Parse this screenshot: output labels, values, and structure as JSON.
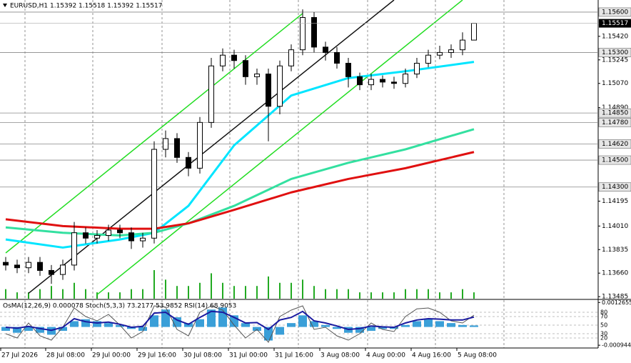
{
  "chart_data": {
    "type": "candlestick",
    "title": "EURUSD,H1  1.15392 1.15518 1.15392 1.15517",
    "candles": {
      "open": [
        1.1374,
        1.1372,
        1.137,
        1.1374,
        1.1368,
        1.1365,
        1.1372,
        1.1396,
        1.1392,
        1.1394,
        1.1398,
        1.1396,
        1.139,
        1.1392,
        1.1458,
        1.1466,
        1.1452,
        1.1444,
        1.1478,
        1.152,
        1.1528,
        1.1524,
        1.1512,
        1.1514,
        1.149,
        1.152,
        1.1532,
        1.1556,
        1.1534,
        1.153,
        1.1522,
        1.1512,
        1.1506,
        1.151,
        1.1508,
        1.1507,
        1.1514,
        1.1522,
        1.1528,
        1.153,
        1.1532,
        1.15392
      ],
      "high": [
        1.1378,
        1.1376,
        1.1378,
        1.1378,
        1.1372,
        1.1376,
        1.1404,
        1.14,
        1.1398,
        1.1402,
        1.1402,
        1.14,
        1.1396,
        1.1464,
        1.1472,
        1.147,
        1.1456,
        1.1482,
        1.1526,
        1.1533,
        1.1532,
        1.1528,
        1.1518,
        1.1518,
        1.1524,
        1.1536,
        1.1562,
        1.156,
        1.1538,
        1.1534,
        1.1526,
        1.1515,
        1.1514,
        1.1513,
        1.1512,
        1.1518,
        1.1526,
        1.1532,
        1.1535,
        1.1536,
        1.1545,
        1.15518
      ],
      "low": [
        1.1368,
        1.1366,
        1.1366,
        1.1364,
        1.1358,
        1.1361,
        1.1368,
        1.1388,
        1.1388,
        1.139,
        1.1392,
        1.1384,
        1.1385,
        1.1388,
        1.1452,
        1.1448,
        1.1438,
        1.144,
        1.1474,
        1.1516,
        1.1518,
        1.1506,
        1.1506,
        1.1464,
        1.1484,
        1.1516,
        1.1528,
        1.153,
        1.1524,
        1.1518,
        1.1504,
        1.1502,
        1.1502,
        1.1504,
        1.1503,
        1.1504,
        1.1511,
        1.1519,
        1.1525,
        1.1526,
        1.1528,
        1.15392
      ],
      "close": [
        1.1372,
        1.137,
        1.1374,
        1.1368,
        1.1365,
        1.1372,
        1.1396,
        1.1392,
        1.1394,
        1.1398,
        1.1396,
        1.139,
        1.1392,
        1.1458,
        1.1466,
        1.1452,
        1.1444,
        1.1478,
        1.152,
        1.1528,
        1.1524,
        1.1512,
        1.1514,
        1.149,
        1.152,
        1.1532,
        1.1556,
        1.1534,
        1.153,
        1.1522,
        1.1512,
        1.1506,
        1.151,
        1.1508,
        1.1507,
        1.1514,
        1.1522,
        1.1528,
        1.153,
        1.1532,
        1.15392,
        1.15517
      ]
    },
    "volume": [
      3,
      2,
      2,
      3,
      4,
      3,
      5,
      3,
      2,
      2,
      2,
      3,
      3,
      9,
      6,
      4,
      4,
      5,
      8,
      5,
      4,
      4,
      4,
      7,
      5,
      5,
      6,
      4,
      3,
      3,
      3,
      2,
      2,
      2,
      2,
      3,
      3,
      3,
      2,
      2,
      3,
      2
    ],
    "volume_color": "#22aa22",
    "moving_averages": [
      {
        "color": "#00e5ff",
        "x": [
          0,
          5,
          10,
          13,
          16,
          20,
          25,
          30,
          35,
          41
        ],
        "values": [
          1.1391,
          1.1385,
          1.1391,
          1.1396,
          1.1416,
          1.1461,
          1.1498,
          1.1511,
          1.1516,
          1.1523
        ]
      },
      {
        "color": "#33e0a0",
        "x": [
          0,
          5,
          10,
          13,
          16,
          20,
          25,
          30,
          35,
          41
        ],
        "values": [
          1.14,
          1.1396,
          1.1394,
          1.1396,
          1.1403,
          1.1416,
          1.1436,
          1.1448,
          1.1458,
          1.1473
        ]
      },
      {
        "color": "#e01010",
        "x": [
          0,
          5,
          10,
          13,
          16,
          20,
          25,
          30,
          35,
          41
        ],
        "values": [
          1.1406,
          1.1401,
          1.1399,
          1.1399,
          1.1403,
          1.1413,
          1.1426,
          1.1436,
          1.1444,
          1.1456
        ]
      }
    ],
    "channel_lines": [
      {
        "color": "#22dd22",
        "x": [
          0,
          26
        ],
        "values": [
          1.1381,
          1.1559
        ]
      },
      {
        "color": "#22dd22",
        "x": [
          8,
          40
        ],
        "values": [
          1.135,
          1.1569
        ]
      },
      {
        "color": "#111111",
        "x": [
          2,
          34
        ],
        "values": [
          1.1351,
          1.1569
        ]
      }
    ],
    "ylim": [
      1.1347,
      1.1569
    ],
    "yticks": [
      {
        "value": 1.1542,
        "label": "1.15420"
      },
      {
        "value": 1.15245,
        "label": "1.15245"
      },
      {
        "value": 1.1507,
        "label": "1.15070"
      },
      {
        "value": 1.1489,
        "label": "1.14890"
      },
      {
        "value": 1.14195,
        "label": "1.14195"
      },
      {
        "value": 1.1401,
        "label": "1.14010"
      },
      {
        "value": 1.13835,
        "label": "1.13835"
      },
      {
        "value": 1.1366,
        "label": "1.13660"
      },
      1.13485
    ],
    "levels": [
      {
        "value": 1.156,
        "label": "1.15600"
      },
      {
        "value": 1.153,
        "label": "1.15300"
      },
      {
        "value": 1.1485,
        "label": "1.14850"
      },
      {
        "value": 1.1478,
        "label": "1.14780"
      },
      {
        "value": 1.1462,
        "label": "1.14620"
      },
      {
        "value": 1.145,
        "label": "1.14500"
      },
      {
        "value": 1.143,
        "label": "1.14300"
      }
    ],
    "current_price": 1.15517,
    "xticks": [
      {
        "value": -0.5,
        "label": "27 Jul 2026"
      },
      {
        "value": 3.5,
        "label": "28 Jul 08:00"
      },
      {
        "value": 7.5,
        "label": "29 Jul 00:00"
      },
      {
        "value": 11.5,
        "label": "29 Jul 16:00"
      },
      {
        "value": 15.5,
        "label": "30 Jul 08:00"
      },
      {
        "value": 19.5,
        "label": "31 Jul 00:00"
      },
      {
        "value": 23.5,
        "label": "31 Jul 16:00"
      },
      {
        "value": 27.5,
        "label": "3 Aug 08:00"
      },
      {
        "value": 31.5,
        "label": "4 Aug 00:00"
      },
      {
        "value": 35.5,
        "label": "4 Aug 16:00"
      },
      {
        "value": 39.5,
        "label": "5 Aug 08:00"
      }
    ],
    "oscillator": {
      "title": "OsMA(12,26,9) 0.000078  Stoch(5,3,3) 73.2177 53.9852  RSI(14) 68.9053",
      "osma": {
        "color": "#3a9fd8",
        "values": [
          -0.0002,
          -0.0003,
          -0.0002,
          -0.0003,
          -0.0004,
          -0.0002,
          0.0003,
          0.0004,
          0.0003,
          0.0002,
          0.0001,
          -0.0001,
          -0.0002,
          0.0006,
          0.0009,
          0.0005,
          0.0002,
          0.0004,
          0.0009,
          0.001,
          0.0006,
          0.0002,
          -0.0002,
          -0.0007,
          -0.0004,
          0.0002,
          0.0006,
          0.0003,
          0.0001,
          -0.0001,
          -0.0003,
          -0.0003,
          -0.0002,
          -0.0001,
          -0.0001,
          0.0001,
          0.0003,
          0.0004,
          0.0003,
          0.0002,
          0.0001,
          7.8e-05
        ]
      },
      "osma_ylim": [
        -0.00105,
        0.00135
      ],
      "osma_ticks": [
        0.0012655,
        -0.000944
      ],
      "rsi": {
        "color": "#1a1aa0",
        "values": [
          45,
          43,
          47,
          42,
          38,
          45,
          65,
          58,
          55,
          57,
          52,
          45,
          47,
          78,
          80,
          62,
          52,
          68,
          82,
          80,
          68,
          55,
          56,
          40,
          62,
          68,
          82,
          60,
          55,
          48,
          40,
          42,
          48,
          46,
          45,
          55,
          62,
          65,
          64,
          62,
          62,
          68.9053
        ]
      },
      "stoch": {
        "color": "#555555",
        "values": [
          30,
          20,
          55,
          25,
          15,
          45,
          90,
          70,
          60,
          75,
          50,
          20,
          35,
          95,
          92,
          40,
          25,
          80,
          95,
          85,
          50,
          20,
          40,
          10,
          70,
          85,
          95,
          40,
          45,
          25,
          15,
          30,
          55,
          40,
          35,
          70,
          88,
          90,
          80,
          60,
          55,
          73.2177
        ]
      },
      "level_ylim": [
        0,
        100
      ],
      "level_ticks": [
        80,
        70,
        50,
        30,
        20
      ]
    }
  }
}
